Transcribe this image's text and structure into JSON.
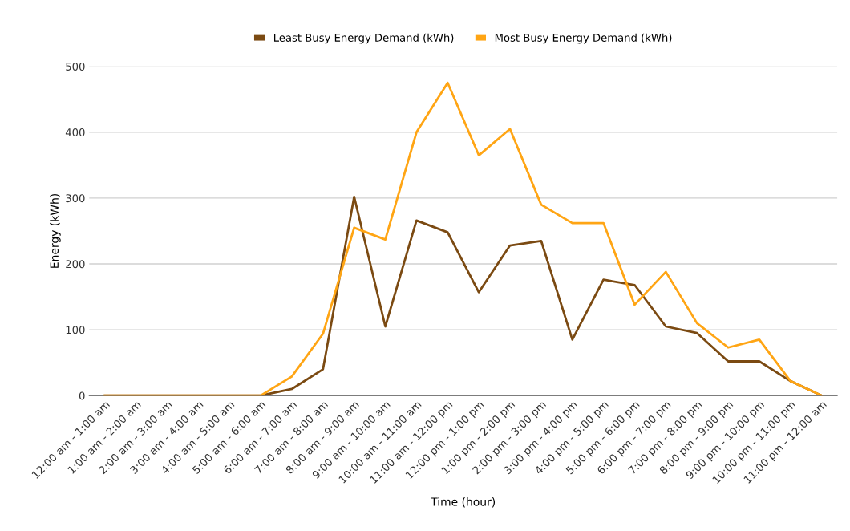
{
  "chart_data": {
    "type": "line",
    "xlabel": "Time (hour)",
    "ylabel": "Energy (kWh)",
    "categories": [
      "12:00 am - 1:00 am",
      "1:00 am - 2:00 am",
      "2:00 am - 3:00 am",
      "3:00 am - 4:00 am",
      "4:00 am - 5:00 am",
      "5:00 am - 6:00 am",
      "6:00 am - 7:00 am",
      "7:00 am - 8:00 am",
      "8:00 am - 9:00 am",
      "9:00 am - 10:00 am",
      "10:00 am - 11:00 am",
      "11:00 am - 12:00 pm",
      "12:00 pm - 1:00 pm",
      "1:00 pm - 2:00 pm",
      "2:00 pm - 3:00 pm",
      "3:00 pm - 4:00 pm",
      "4:00 pm - 5:00 pm",
      "5:00 pm - 6:00 pm",
      "6:00 pm - 7:00 pm",
      "7:00 pm - 8:00 pm",
      "8:00 pm - 9:00 pm",
      "9:00 pm - 10:00 pm",
      "10:00 pm - 11:00 pm",
      "11:00 pm - 12:00 am"
    ],
    "series": [
      {
        "name": "Least Busy Energy Demand (kWh)",
        "color": "#7b4a12",
        "values": [
          0,
          0,
          0,
          0,
          0,
          0,
          10,
          40,
          302,
          105,
          266,
          248,
          157,
          228,
          235,
          85,
          176,
          168,
          105,
          95,
          52,
          52,
          22,
          0
        ]
      },
      {
        "name": "Most Busy Energy Demand (kWh)",
        "color": "#ffa514",
        "values": [
          0,
          0,
          0,
          0,
          0,
          0,
          29,
          94,
          255,
          237,
          400,
          475,
          365,
          405,
          290,
          262,
          262,
          138,
          188,
          110,
          73,
          85,
          22,
          0
        ]
      }
    ],
    "ylim": [
      0,
      500
    ],
    "yticks": [
      0,
      100,
      200,
      300,
      400,
      500
    ],
    "grid": "y",
    "legend": "top",
    "marker": "none",
    "line_style": "solid"
  }
}
